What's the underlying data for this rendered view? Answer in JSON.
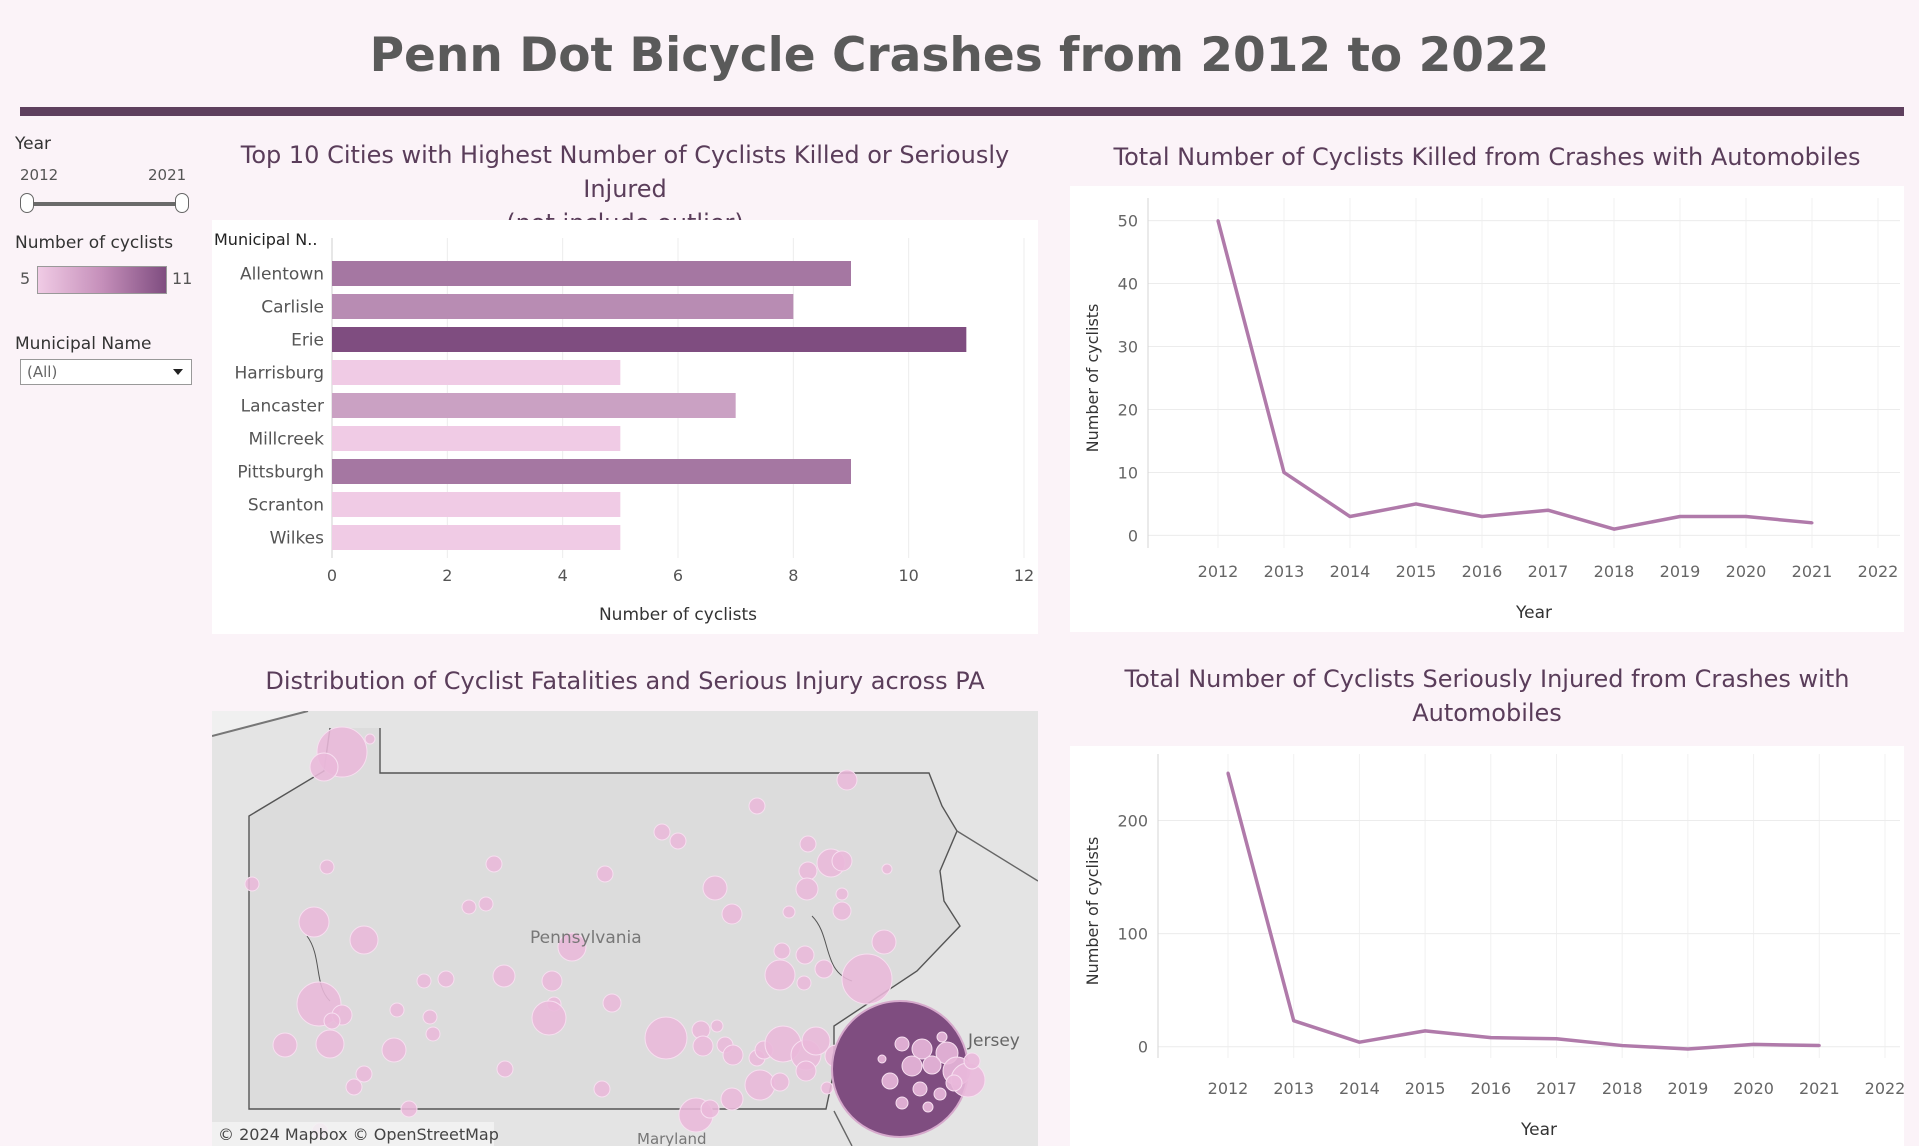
{
  "dashboard": {
    "title": "Penn Dot Bicycle Crashes from 2012 to 2022"
  },
  "filters": {
    "year_label": "Year",
    "year_min": "2012",
    "year_max": "2021",
    "legend_label": "Number of cyclists",
    "legend_min": "5",
    "legend_max": "11",
    "legend_colors": [
      "#f0cbe5",
      "#7f4d80"
    ],
    "muni_label": "Municipal Name",
    "muni_value": "(All)"
  },
  "bar_panel": {
    "title_line1": "Top 10 Cities with Highest Number of Cyclists Killed or Seriously Injured",
    "title_line2": "(not include outlier)"
  },
  "map_panel": {
    "title": "Distribution of Cyclist Fatalities and Serious Injury across PA",
    "labels": {
      "state": "Pennsylvania",
      "jersey": "Jersey",
      "maryland": "Maryland"
    },
    "attribution": "© 2024 Mapbox  © OpenStreetMap",
    "bubble_color": "#e9b8da",
    "outlier_color": "#7f4d80"
  },
  "killed_panel": {
    "title": "Total Number of Cyclists Killed from Crashes with Automobiles"
  },
  "injured_panel": {
    "title_line1": "Total Number of Cyclists Seriously Injured from Crashes with",
    "title_line2": "Automobiles"
  },
  "chart_data": [
    {
      "type": "bar",
      "orientation": "horizontal",
      "category_header": "Municipal N..",
      "categories": [
        "Allentown",
        "Carlisle",
        "Erie",
        "Harrisburg",
        "Lancaster",
        "Millcreek",
        "Pittsburgh",
        "Scranton",
        "Wilkes"
      ],
      "values": [
        9,
        8,
        11,
        5,
        7,
        5,
        9,
        5,
        5
      ],
      "xlabel": "Number of cyclists",
      "xlim": [
        0,
        12
      ],
      "xticks": [
        0,
        2,
        4,
        6,
        8,
        10,
        12
      ],
      "grid": true,
      "color_range": [
        "#f0cbe5",
        "#7f4d80"
      ]
    },
    {
      "type": "line",
      "x": [
        2012,
        2013,
        2014,
        2015,
        2016,
        2017,
        2018,
        2019,
        2020,
        2021
      ],
      "values": [
        50,
        10,
        3,
        5,
        3,
        4,
        1,
        3,
        3,
        2
      ],
      "xticks": [
        2012,
        2013,
        2014,
        2015,
        2016,
        2017,
        2018,
        2019,
        2020,
        2021,
        2022
      ],
      "yticks": [
        0,
        10,
        20,
        30,
        40,
        50
      ],
      "ylim": [
        -2,
        52
      ],
      "xlabel": "Year",
      "ylabel": "Number of cyclists",
      "color": "#b07aaa",
      "grid": true
    },
    {
      "type": "line",
      "x": [
        2012,
        2013,
        2014,
        2015,
        2016,
        2017,
        2018,
        2019,
        2020,
        2021
      ],
      "values": [
        242,
        23,
        4,
        14,
        8,
        7,
        1,
        -2,
        2,
        1
      ],
      "xticks": [
        2012,
        2013,
        2014,
        2015,
        2016,
        2017,
        2018,
        2019,
        2020,
        2021,
        2022
      ],
      "yticks": [
        0,
        100,
        200
      ],
      "ylim": [
        -10,
        250
      ],
      "xlabel": "Year",
      "ylabel": "Number of cyclists",
      "color": "#b07aaa",
      "grid": true
    }
  ]
}
